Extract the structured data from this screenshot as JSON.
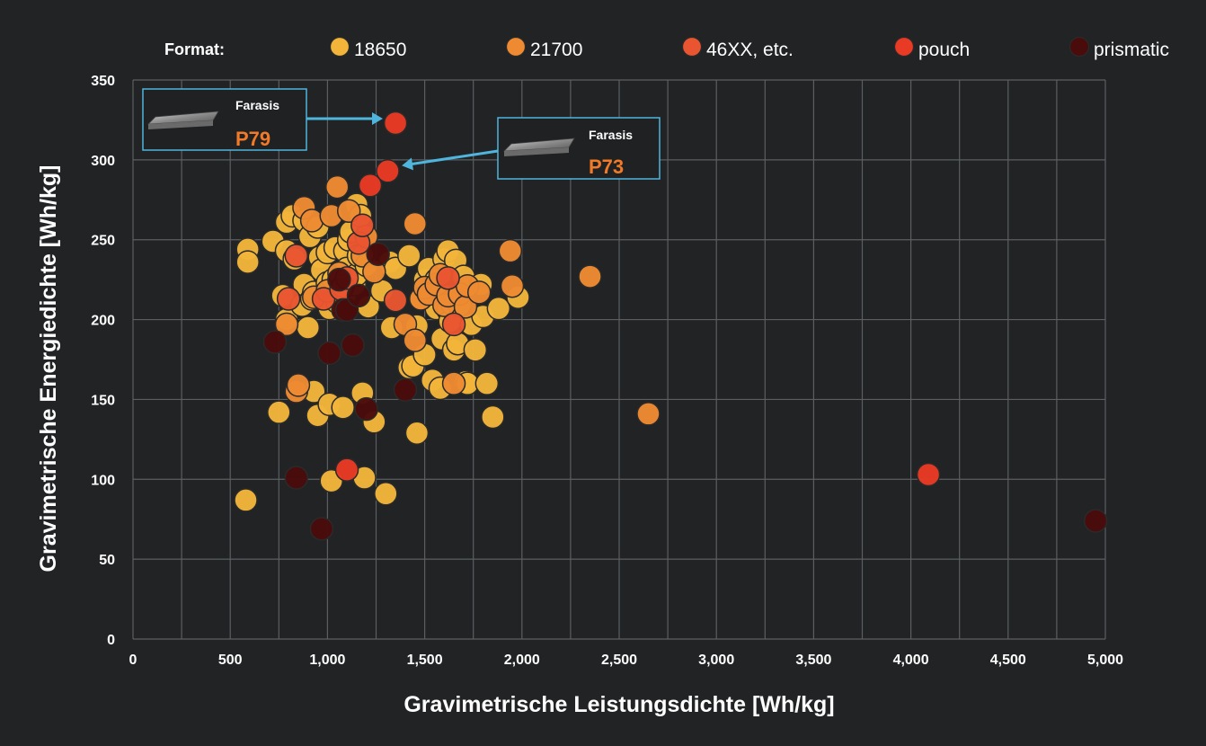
{
  "chart_data": {
    "type": "scatter",
    "title": "",
    "xlabel": "Gravimetrische Leistungsdichte [Wh/kg]",
    "ylabel": "Gravimetrische Energiedichte [Wh/kg]",
    "xlim": [
      0,
      5000
    ],
    "ylim": [
      0,
      350
    ],
    "xticks": [
      0,
      250,
      500,
      750,
      1000,
      1250,
      1500,
      1750,
      2000,
      2250,
      2500,
      2750,
      3000,
      3250,
      3500,
      3750,
      4000,
      4250,
      4500,
      4750,
      5000
    ],
    "xtick_labels": [
      "0",
      "500",
      "1,000",
      "1,500",
      "2,000",
      "2,500",
      "3,000",
      "3,500",
      "4,000",
      "4,500",
      "5,000"
    ],
    "xtick_label_values": [
      0,
      500,
      1000,
      1500,
      2000,
      2500,
      3000,
      3500,
      4000,
      4500,
      5000
    ],
    "yticks": [
      0,
      50,
      100,
      150,
      200,
      250,
      300,
      350
    ],
    "ytick_labels": [
      "0",
      "50",
      "100",
      "150",
      "200",
      "250",
      "300",
      "350"
    ],
    "grid": true,
    "legend_title": "Format:",
    "legend_placement": "top",
    "series": [
      {
        "name": "18650",
        "color": "#f2b53a",
        "points": [
          [
            580,
            87
          ],
          [
            590,
            244
          ],
          [
            590,
            236
          ],
          [
            720,
            249
          ],
          [
            750,
            142
          ],
          [
            770,
            215
          ],
          [
            790,
            200
          ],
          [
            790,
            243
          ],
          [
            790,
            261
          ],
          [
            820,
            265
          ],
          [
            830,
            238
          ],
          [
            870,
            209
          ],
          [
            880,
            262
          ],
          [
            880,
            222
          ],
          [
            900,
            195
          ],
          [
            910,
            252
          ],
          [
            920,
            213
          ],
          [
            930,
            217
          ],
          [
            930,
            155
          ],
          [
            950,
            258
          ],
          [
            950,
            140
          ],
          [
            960,
            239
          ],
          [
            970,
            231
          ],
          [
            1000,
            242
          ],
          [
            1000,
            223
          ],
          [
            1010,
            207
          ],
          [
            1010,
            218
          ],
          [
            1010,
            147
          ],
          [
            1020,
            99
          ],
          [
            1030,
            225
          ],
          [
            1040,
            245
          ],
          [
            1050,
            211
          ],
          [
            1080,
            145
          ],
          [
            1090,
            243
          ],
          [
            1090,
            214
          ],
          [
            1100,
            232
          ],
          [
            1110,
            250
          ],
          [
            1120,
            255
          ],
          [
            1140,
            222
          ],
          [
            1150,
            228
          ],
          [
            1150,
            272
          ],
          [
            1160,
            240
          ],
          [
            1170,
            265
          ],
          [
            1180,
            154
          ],
          [
            1190,
            101
          ],
          [
            1200,
            234
          ],
          [
            1210,
            208
          ],
          [
            1240,
            136
          ],
          [
            1280,
            218
          ],
          [
            1300,
            91
          ],
          [
            1320,
            236
          ],
          [
            1330,
            195
          ],
          [
            1350,
            232
          ],
          [
            1420,
            240
          ],
          [
            1420,
            170
          ],
          [
            1440,
            171
          ],
          [
            1460,
            129
          ],
          [
            1460,
            196
          ],
          [
            1480,
            213
          ],
          [
            1500,
            225
          ],
          [
            1500,
            178
          ],
          [
            1520,
            232
          ],
          [
            1540,
            162
          ],
          [
            1560,
            225
          ],
          [
            1560,
            207
          ],
          [
            1580,
            157
          ],
          [
            1590,
            188
          ],
          [
            1600,
            238
          ],
          [
            1620,
            206
          ],
          [
            1620,
            243
          ],
          [
            1630,
            199
          ],
          [
            1640,
            210
          ],
          [
            1650,
            181
          ],
          [
            1660,
            237
          ],
          [
            1670,
            185
          ],
          [
            1680,
            209
          ],
          [
            1700,
            227
          ],
          [
            1710,
            161
          ],
          [
            1720,
            160
          ],
          [
            1740,
            197
          ],
          [
            1760,
            181
          ],
          [
            1790,
            222
          ],
          [
            1800,
            202
          ],
          [
            1820,
            160
          ],
          [
            1850,
            139
          ],
          [
            1880,
            207
          ],
          [
            1980,
            214
          ]
        ]
      },
      {
        "name": "21700",
        "color": "#ed8a32",
        "points": [
          [
            790,
            197
          ],
          [
            840,
            155
          ],
          [
            850,
            159
          ],
          [
            880,
            270
          ],
          [
            920,
            262
          ],
          [
            930,
            214
          ],
          [
            1000,
            218
          ],
          [
            1020,
            265
          ],
          [
            1050,
            283
          ],
          [
            1060,
            229
          ],
          [
            1080,
            221
          ],
          [
            1110,
            268
          ],
          [
            1180,
            240
          ],
          [
            1200,
            252
          ],
          [
            1240,
            230
          ],
          [
            1400,
            197
          ],
          [
            1450,
            260
          ],
          [
            1450,
            187
          ],
          [
            1480,
            213
          ],
          [
            1500,
            220
          ],
          [
            1520,
            216
          ],
          [
            1560,
            222
          ],
          [
            1580,
            228
          ],
          [
            1600,
            209
          ],
          [
            1620,
            215
          ],
          [
            1650,
            160
          ],
          [
            1680,
            216
          ],
          [
            1710,
            208
          ],
          [
            1720,
            221
          ],
          [
            1780,
            217
          ],
          [
            1940,
            243
          ],
          [
            1950,
            221
          ],
          [
            2350,
            227
          ],
          [
            2650,
            141
          ]
        ]
      },
      {
        "name": "46XX, etc.",
        "color": "#e85530",
        "points": [
          [
            800,
            213
          ],
          [
            840,
            240
          ],
          [
            980,
            213
          ],
          [
            1070,
            219
          ],
          [
            1100,
            226
          ],
          [
            1160,
            248
          ],
          [
            1180,
            259
          ],
          [
            1350,
            212
          ],
          [
            1620,
            226
          ],
          [
            1650,
            197
          ]
        ]
      },
      {
        "name": "pouch",
        "color": "#e83a24",
        "points": [
          [
            1100,
            106
          ],
          [
            1220,
            284
          ],
          [
            1310,
            293
          ],
          [
            1350,
            323
          ],
          [
            4090,
            103
          ]
        ]
      },
      {
        "name": "prismatic",
        "color": "#4a0b0b",
        "points": [
          [
            730,
            186
          ],
          [
            840,
            101
          ],
          [
            970,
            69
          ],
          [
            1010,
            179
          ],
          [
            1060,
            225
          ],
          [
            1080,
            206
          ],
          [
            1100,
            206
          ],
          [
            1130,
            184
          ],
          [
            1160,
            215
          ],
          [
            1200,
            144
          ],
          [
            1260,
            241
          ],
          [
            1400,
            156
          ],
          [
            4950,
            74
          ]
        ]
      }
    ],
    "annotations": [
      {
        "label": "Farasis",
        "model": "P79",
        "target": [
          1350,
          323
        ],
        "model_color": "#f07a28"
      },
      {
        "label": "Farasis",
        "model": "P73",
        "target": [
          1310,
          293
        ],
        "model_color": "#f07a28"
      }
    ]
  }
}
